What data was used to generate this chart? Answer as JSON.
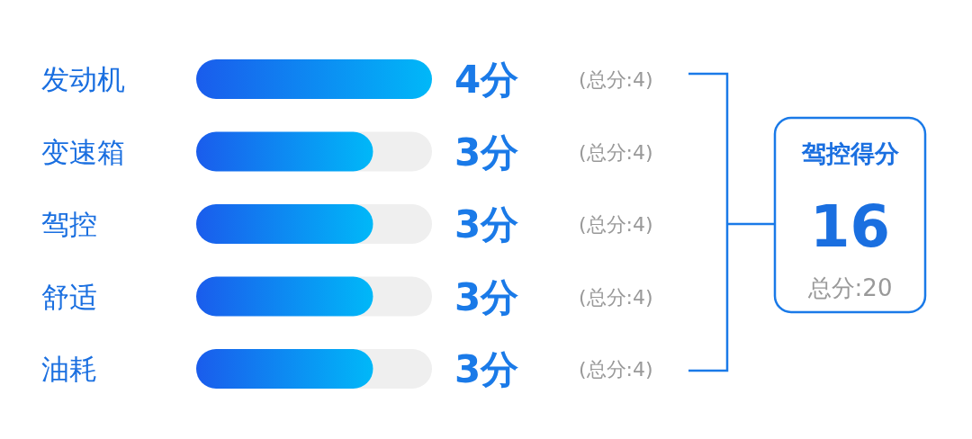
{
  "chart_data": {
    "type": "bar",
    "orientation": "horizontal",
    "categories": [
      "发动机",
      "变速箱",
      "驾控",
      "舒适",
      "油耗"
    ],
    "values": [
      4,
      3,
      3,
      3,
      3
    ],
    "value_labels": [
      "4分",
      "3分",
      "3分",
      "3分",
      "3分"
    ],
    "xlim": [
      0,
      4
    ],
    "color": "#1a5cec",
    "annotations": [
      "(总分:4)",
      "(总分:4)",
      "(总分:4)",
      "(总分:4)",
      "(总分:4)",
      "驾控得分",
      "16",
      "总分:20"
    ]
  }
}
